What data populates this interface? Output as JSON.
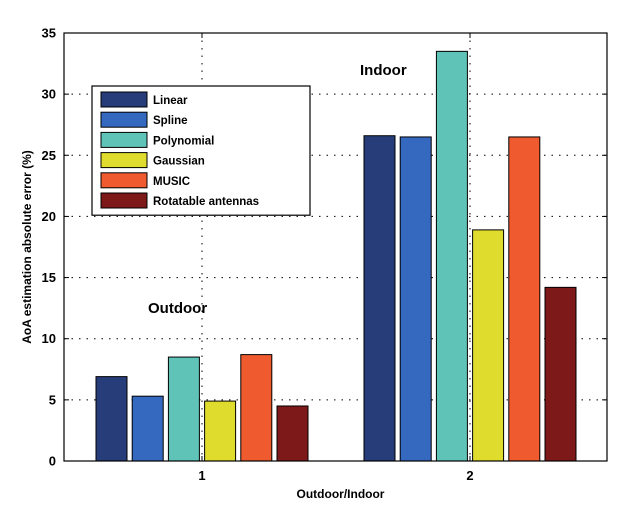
{
  "chart_data": {
    "type": "bar",
    "title": "",
    "xlabel": "Outdoor/Indoor",
    "ylabel": "AoA estimation absolute error (%)",
    "categories": [
      "1",
      "2"
    ],
    "ylim": [
      0,
      35
    ],
    "yticks": [
      "0",
      "5",
      "10",
      "15",
      "20",
      "25",
      "30",
      "35"
    ],
    "grid": true,
    "legend_position": "top-left",
    "series": [
      {
        "name": "Linear",
        "color": "#263d7a",
        "values": [
          6.9,
          26.6
        ]
      },
      {
        "name": "Spline",
        "color": "#3568bf",
        "values": [
          5.3,
          26.5
        ]
      },
      {
        "name": "Polynomial",
        "color": "#5fc3b8",
        "values": [
          8.5,
          33.5
        ]
      },
      {
        "name": "Gaussian",
        "color": "#dfdc2e",
        "values": [
          4.9,
          18.9
        ]
      },
      {
        "name": "MUSIC",
        "color": "#ef5a2e",
        "values": [
          8.7,
          26.5
        ]
      },
      {
        "name": "Rotatable antennas",
        "color": "#7e1919",
        "values": [
          4.5,
          14.2
        ]
      }
    ],
    "annotations": [
      {
        "text": "Outdoor",
        "category": "1"
      },
      {
        "text": "Indoor",
        "category": "2"
      }
    ]
  }
}
